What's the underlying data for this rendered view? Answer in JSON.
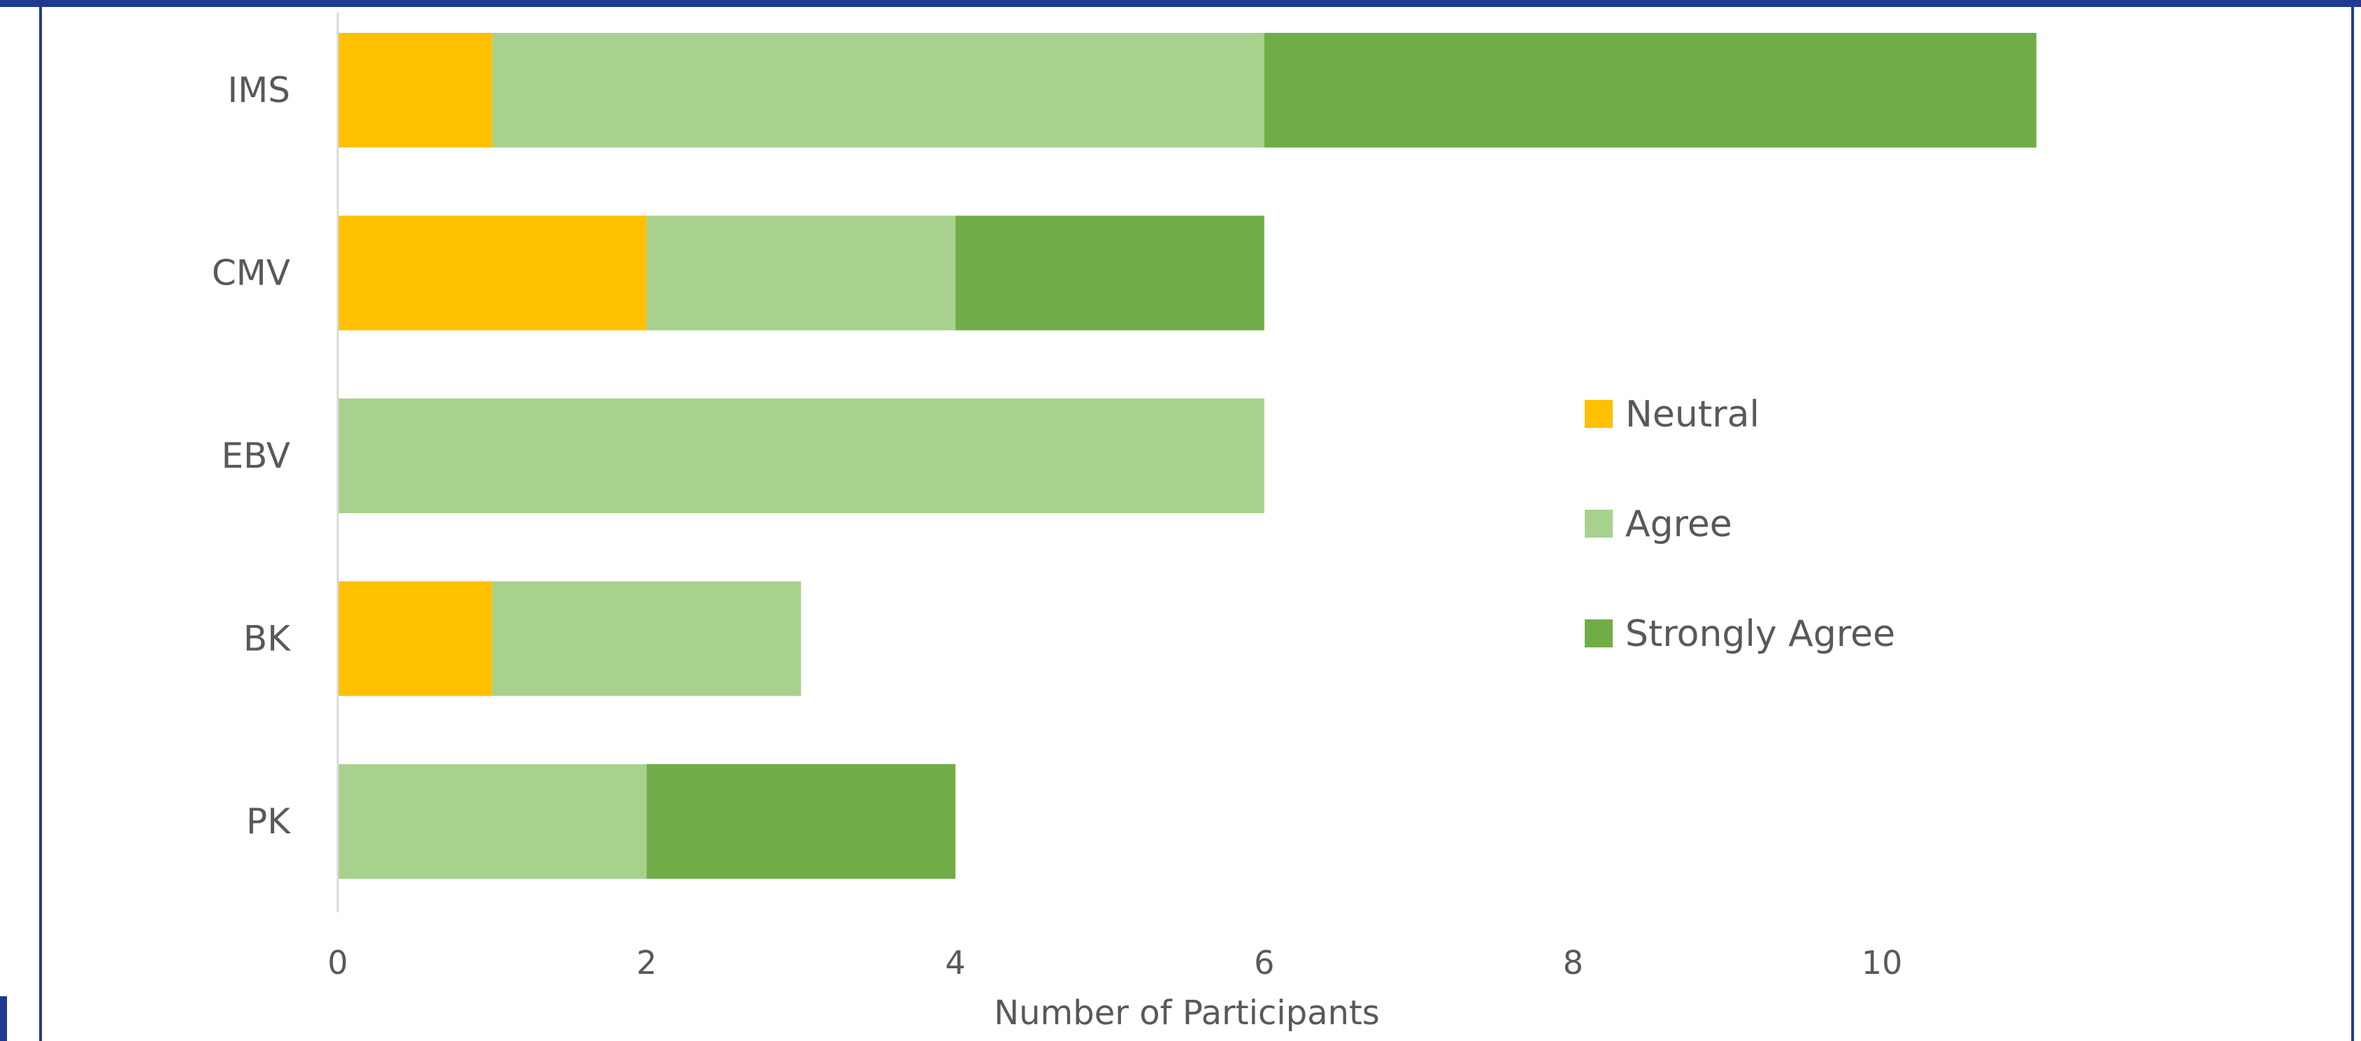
{
  "chart_data": {
    "type": "bar",
    "orientation": "horizontal",
    "stacked": true,
    "categories": [
      "IMS",
      "CMV",
      "EBV",
      "BK",
      "PK"
    ],
    "series": [
      {
        "name": "Neutral",
        "values": [
          1,
          2,
          0,
          1,
          0
        ],
        "color": "#FFC000"
      },
      {
        "name": "Agree",
        "values": [
          5,
          2,
          6,
          2,
          2
        ],
        "color": "#A9D18E"
      },
      {
        "name": "Strongly Agree",
        "values": [
          5,
          2,
          0,
          0,
          2
        ],
        "color": "#70AD47"
      }
    ],
    "xlabel": "Number of Participants",
    "ylabel": "",
    "xlim": [
      0,
      12.6
    ],
    "xticks": [
      0,
      2,
      4,
      6,
      8,
      10
    ],
    "grid": false,
    "legend_position": "right"
  },
  "colors": {
    "frame": "#1F3A93",
    "axis_line": "#D9D9D9",
    "text": "#595959"
  }
}
